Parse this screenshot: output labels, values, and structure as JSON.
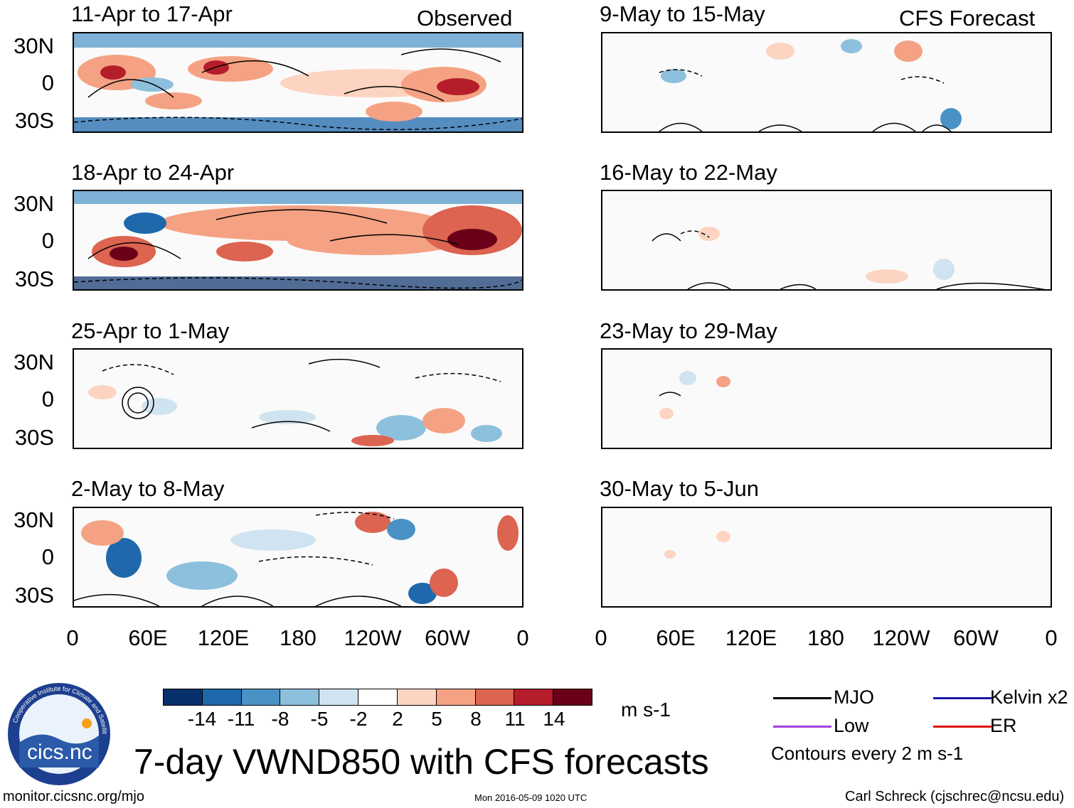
{
  "header": {
    "observed_label": "Observed",
    "forecast_label": "CFS Forecast"
  },
  "observed_panels": [
    {
      "title": "11-Apr to 17-Apr"
    },
    {
      "title": "18-Apr to 24-Apr"
    },
    {
      "title": "25-Apr to 1-May"
    },
    {
      "title": "2-May to 8-May"
    }
  ],
  "forecast_panels": [
    {
      "title": "9-May to 15-May"
    },
    {
      "title": "16-May to 22-May"
    },
    {
      "title": "23-May to 29-May"
    },
    {
      "title": "30-May to 5-Jun"
    }
  ],
  "axes": {
    "y_labels": [
      "30N",
      "0",
      "30S"
    ],
    "x_labels": [
      "0",
      "60E",
      "120E",
      "180",
      "120W",
      "60W",
      "0"
    ]
  },
  "colorbar": {
    "colors": [
      "#08306b",
      "#1f68ac",
      "#4a92c6",
      "#8dc0dd",
      "#cfe3f0",
      "#ffffff",
      "#fdd4c1",
      "#f4a283",
      "#dc6450",
      "#b51d2b",
      "#6b0019"
    ],
    "ticks": [
      "-14",
      "-11",
      "-8",
      "-5",
      "-2",
      "2",
      "5",
      "8",
      "11",
      "14"
    ],
    "units": "m s-1"
  },
  "legend": {
    "items": [
      {
        "label": "MJO",
        "color": "#000000"
      },
      {
        "label": "Kelvin x2",
        "color": "#1a1aa6"
      },
      {
        "label": "Low",
        "color": "#a040e0"
      },
      {
        "label": "ER",
        "color": "#e01010"
      }
    ],
    "contour_note": "Contours every 2 m s-1"
  },
  "logo": {
    "text": "cics.nc",
    "ring_text": "Cooperative Institute for Climate and Satellites"
  },
  "main_title": "7-day VWND850 with CFS forecasts",
  "footer": {
    "url": "monitor.cicsnc.org/mjo",
    "timestamp": "Mon 2016-05-09 1020 UTC",
    "author": "Carl Schreck (cjschrec@ncsu.edu)"
  }
}
